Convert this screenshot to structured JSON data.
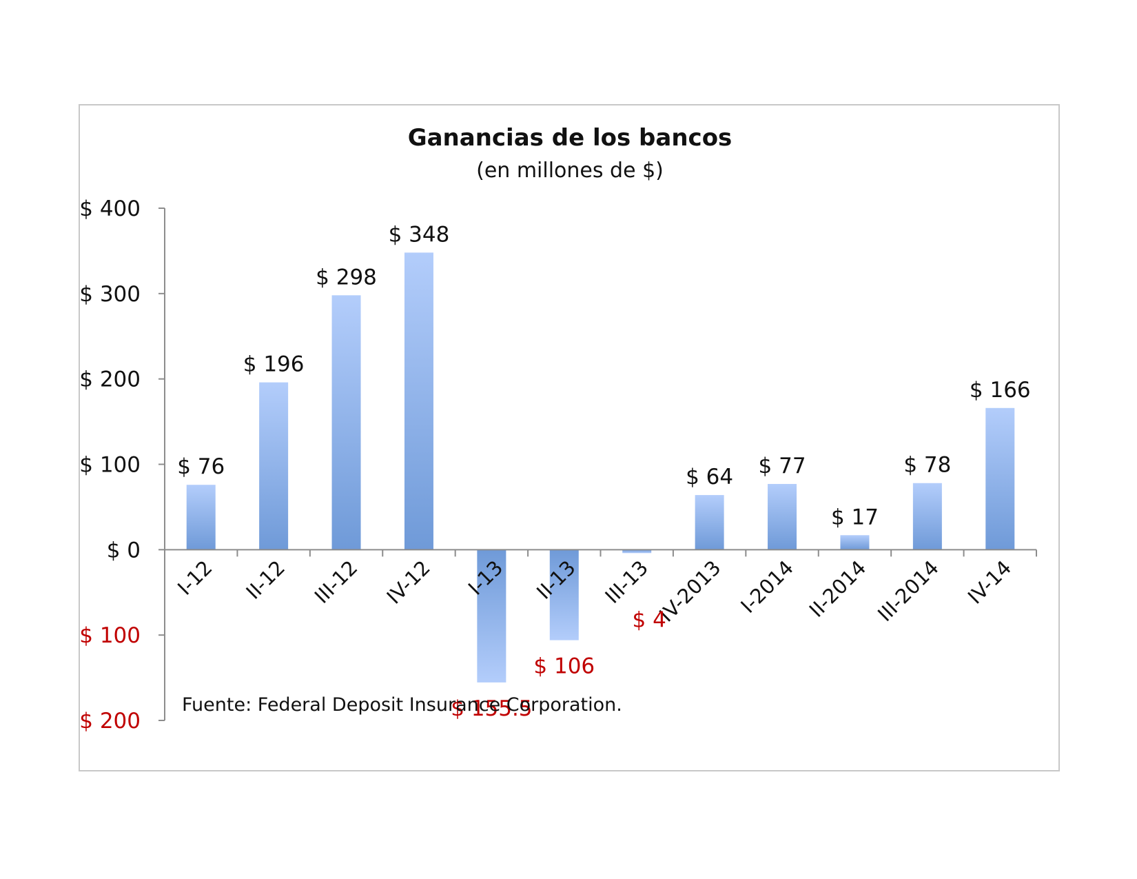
{
  "chart_data": {
    "type": "bar",
    "title": "Ganancias de los bancos",
    "subtitle": "(en millones de $)",
    "categories": [
      "I-12",
      "II-12",
      "III-12",
      "IV-12",
      "I-13",
      "II-13",
      "III-13",
      "IV-2013",
      "I-2014",
      "II-2014",
      "III-2014",
      "IV-14"
    ],
    "values": [
      76,
      196,
      298,
      348,
      -155.5,
      -106,
      -4,
      64,
      77,
      17,
      78,
      166
    ],
    "data_labels": [
      "$ 76",
      "$ 196",
      "$ 298",
      "$ 348",
      "$ 155.5",
      "$ 106",
      "$ 4",
      "$ 64",
      "$ 77",
      "$ 17",
      "$ 78",
      "$ 166"
    ],
    "yticks": [
      400,
      300,
      200,
      100,
      0,
      -100,
      -200
    ],
    "ytick_labels": [
      "$ 400",
      "$ 300",
      "$ 200",
      "$ 100",
      "$ 0",
      "$ 100",
      "$ 200"
    ],
    "ylim": [
      -200,
      400
    ],
    "xlabel": "",
    "ylabel": "",
    "grid": false,
    "legend": "none",
    "source": "Fuente: Federal Deposit Insurance Corporation.",
    "colors": {
      "bar_top": "#b3cdfb",
      "bar_bottom": "#6f9ad8",
      "negative_text": "#c00000",
      "positive_text": "#111111",
      "axis": "#8c8c8c"
    }
  }
}
